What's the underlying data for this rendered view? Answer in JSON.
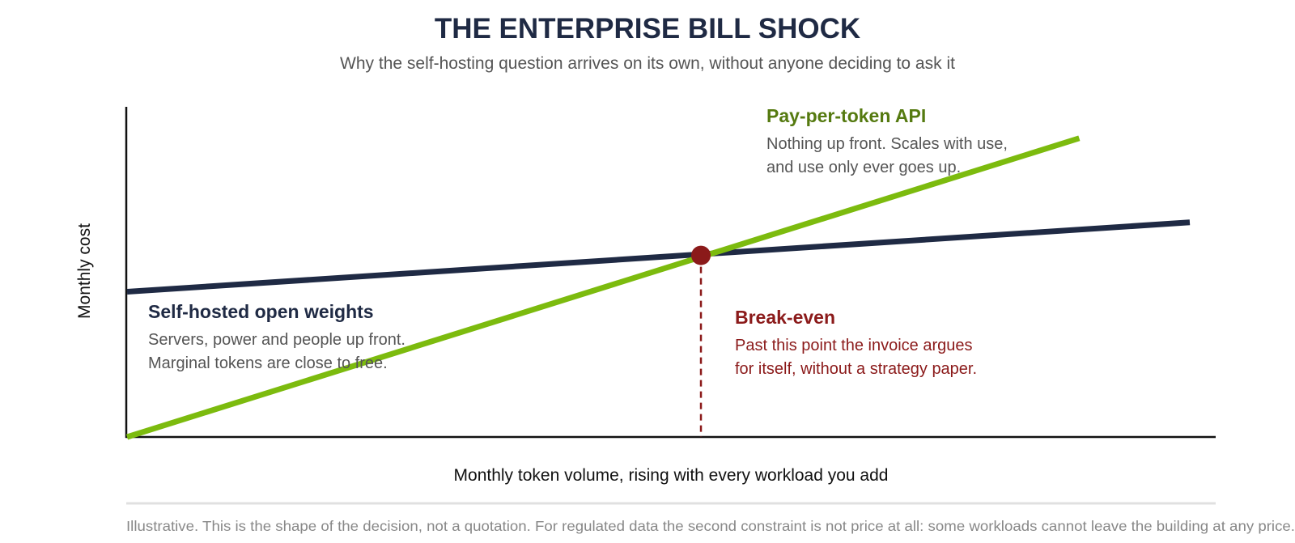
{
  "chart_data": {
    "type": "line",
    "title": "THE ENTERPRISE BILL SHOCK",
    "subtitle": "Why the self-hosting question arrives on its own, without anyone deciding to ask it",
    "xlabel": "Monthly token volume, rising with every workload you add",
    "ylabel": "Monthly cost",
    "xlim": [
      0,
      100
    ],
    "ylim": [
      0,
      100
    ],
    "ticks_shown": false,
    "grid": false,
    "series": [
      {
        "key": "self-hosted",
        "name": "Self-hosted open weights",
        "color": "#1f2a44",
        "x": [
          0,
          100
        ],
        "y": [
          44,
          65
        ]
      },
      {
        "key": "api",
        "name": "Pay-per-token API",
        "color": "#7cbb0e",
        "x": [
          0,
          89.6
        ],
        "y": [
          0,
          90.5
        ]
      }
    ],
    "break_even": {
      "x": 54,
      "y": 55,
      "color": "#8b1a1a"
    },
    "annotations": {
      "api": {
        "title": "Pay-per-token API",
        "lines": [
          "Nothing up front. Scales with use,",
          "and use only ever goes up."
        ],
        "color": "#557a10"
      },
      "self_hosted": {
        "title": "Self-hosted open weights",
        "lines": [
          "Servers, power and people up front.",
          "Marginal tokens are close to free."
        ],
        "color": "#1f2a44"
      },
      "break_even": {
        "title": "Break-even",
        "lines": [
          "Past this point the invoice argues",
          "for itself, without a strategy paper."
        ],
        "color": "#8b1a1a"
      }
    },
    "footnote": "Illustrative. This is the shape of the decision, not a quotation. For regulated data the second constraint is not price at all: some workloads cannot leave the building at any price."
  }
}
